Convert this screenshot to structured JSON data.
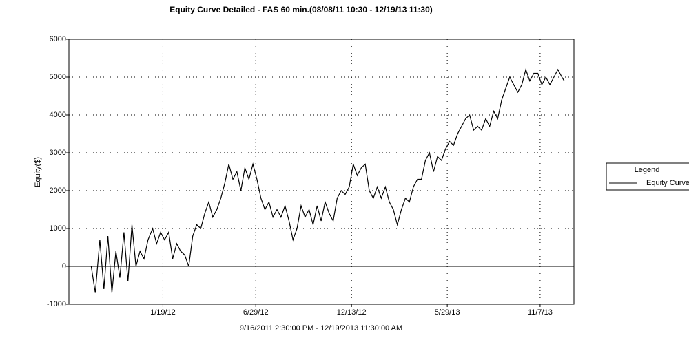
{
  "chart_data": {
    "type": "line",
    "title": "Equity Curve Detailed - FAS 60 min.(08/08/11 10:30 - 12/19/13 11:30)",
    "x_label": "9/16/2011 2:30:00 PM - 12/19/2013 11:30:00 AM",
    "y_label": "Equity($)",
    "legend_title": "Legend",
    "legend_position": "right",
    "grid": true,
    "xlim": [
      "8/8/11",
      "1/5/14"
    ],
    "xticks": [
      "1/19/12",
      "6/29/12",
      "12/13/12",
      "5/29/13",
      "11/7/13"
    ],
    "ylim": [
      -1000,
      6000
    ],
    "yticks": [
      -1000,
      0,
      1000,
      2000,
      3000,
      4000,
      5000,
      6000
    ],
    "x": [
      "9/16/11",
      "9/23/11",
      "10/1/11",
      "10/8/11",
      "10/15/11",
      "10/22/11",
      "10/29/11",
      "11/5/11",
      "11/12/11",
      "11/19/11",
      "11/26/11",
      "12/3/11",
      "12/10/11",
      "12/17/11",
      "12/24/11",
      "1/1/12",
      "1/8/12",
      "1/15/12",
      "1/22/12",
      "1/29/12",
      "2/5/12",
      "2/12/12",
      "2/19/12",
      "2/26/12",
      "3/4/12",
      "3/11/12",
      "3/18/12",
      "3/25/12",
      "4/1/12",
      "4/8/12",
      "4/15/12",
      "4/22/12",
      "4/29/12",
      "5/6/12",
      "5/13/12",
      "5/20/12",
      "5/27/12",
      "6/3/12",
      "6/10/12",
      "6/17/12",
      "6/24/12",
      "7/1/12",
      "7/8/12",
      "7/15/12",
      "7/22/12",
      "7/29/12",
      "8/5/12",
      "8/12/12",
      "8/19/12",
      "8/26/12",
      "9/2/12",
      "9/9/12",
      "9/16/12",
      "9/23/12",
      "9/30/12",
      "10/7/12",
      "10/14/12",
      "10/21/12",
      "10/28/12",
      "11/4/12",
      "11/11/12",
      "11/18/12",
      "11/25/12",
      "12/2/12",
      "12/9/12",
      "12/16/12",
      "12/23/12",
      "12/30/12",
      "1/6/13",
      "1/13/13",
      "1/20/13",
      "1/27/13",
      "2/3/13",
      "2/10/13",
      "2/17/13",
      "2/24/13",
      "3/3/13",
      "3/10/13",
      "3/17/13",
      "3/24/13",
      "3/31/13",
      "4/7/13",
      "4/14/13",
      "4/21/13",
      "4/28/13",
      "5/5/13",
      "5/12/13",
      "5/19/13",
      "5/26/13",
      "6/2/13",
      "6/9/13",
      "6/16/13",
      "6/23/13",
      "6/30/13",
      "7/7/13",
      "7/14/13",
      "7/21/13",
      "7/28/13",
      "8/4/13",
      "8/11/13",
      "8/18/13",
      "8/25/13",
      "9/1/13",
      "9/8/13",
      "9/15/13",
      "9/22/13",
      "9/29/13",
      "10/6/13",
      "10/13/13",
      "10/20/13",
      "10/27/13",
      "11/3/13",
      "11/10/13",
      "11/17/13",
      "11/24/13",
      "12/1/13",
      "12/8/13",
      "12/15/13",
      "12/19/13"
    ],
    "series": [
      {
        "name": "Equity Curve",
        "color": "#000000",
        "values": [
          0,
          -700,
          700,
          -600,
          800,
          -700,
          400,
          -300,
          900,
          -400,
          1100,
          0,
          400,
          200,
          700,
          1000,
          600,
          900,
          700,
          900,
          200,
          600,
          400,
          300,
          0,
          800,
          1100,
          1000,
          1400,
          1700,
          1300,
          1500,
          1800,
          2200,
          2700,
          2300,
          2500,
          2000,
          2600,
          2300,
          2700,
          2300,
          1800,
          1500,
          1700,
          1300,
          1500,
          1300,
          1600,
          1200,
          700,
          1000,
          1600,
          1300,
          1500,
          1100,
          1600,
          1200,
          1700,
          1400,
          1200,
          1800,
          2000,
          1900,
          2100,
          2700,
          2400,
          2600,
          2700,
          2000,
          1800,
          2100,
          1800,
          2100,
          1700,
          1500,
          1100,
          1500,
          1800,
          1700,
          2100,
          2300,
          2300,
          2800,
          3000,
          2500,
          2900,
          2800,
          3100,
          3300,
          3200,
          3500,
          3700,
          3900,
          4000,
          3600,
          3700,
          3600,
          3900,
          3700,
          4100,
          3900,
          4400,
          4700,
          5000,
          4800,
          4600,
          4800,
          5200,
          4900,
          5100,
          5100,
          4800,
          5000,
          4800,
          5000,
          5200,
          5000,
          4900
        ]
      }
    ]
  }
}
